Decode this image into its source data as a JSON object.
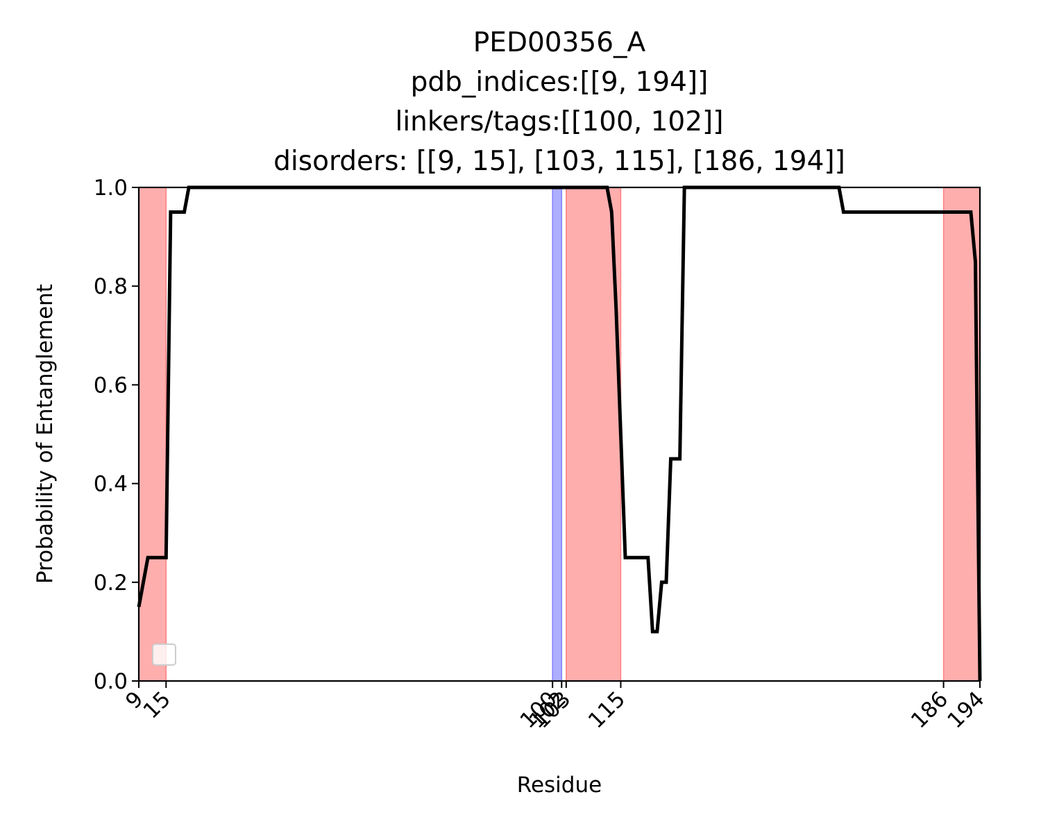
{
  "chart_data": {
    "type": "line",
    "title_lines": [
      "PED00356_A",
      "pdb_indices:[[9, 194]]",
      "linkers/tags:[[100, 102]]",
      "disorders: [[9, 15], [103, 115], [186, 194]]"
    ],
    "xlabel": "Residue",
    "ylabel": "Probability of Entanglement",
    "xlim": [
      9,
      194
    ],
    "ylim": [
      0,
      1.0
    ],
    "x_ticks": [
      9,
      15,
      100,
      102,
      103,
      115,
      186,
      194
    ],
    "x_tick_labels": [
      "9",
      "15",
      "100",
      "102",
      "103",
      "115",
      "186",
      "194"
    ],
    "y_ticks": [
      0,
      0.2,
      0.4,
      0.6,
      0.8,
      1.0
    ],
    "y_tick_labels": [
      "0.0",
      "0.2",
      "0.4",
      "0.6",
      "0.8",
      "1.0"
    ],
    "grid": false,
    "legend": {
      "placement": "lower-left",
      "entries": []
    },
    "shaded_regions": [
      {
        "kind": "disorder",
        "x0": 9,
        "x1": 15,
        "color": "#ff6b6b"
      },
      {
        "kind": "linker",
        "x0": 100,
        "x1": 102,
        "color": "#6b6bff"
      },
      {
        "kind": "disorder",
        "x0": 103,
        "x1": 115,
        "color": "#ff6b6b"
      },
      {
        "kind": "disorder",
        "x0": 186,
        "x1": 194,
        "color": "#ff6b6b"
      }
    ],
    "series": [
      {
        "color": "#000000",
        "points": [
          [
            9,
            0.15
          ],
          [
            10,
            0.2
          ],
          [
            11,
            0.25
          ],
          [
            14,
            0.25
          ],
          [
            15,
            0.25
          ],
          [
            16,
            0.95
          ],
          [
            19,
            0.95
          ],
          [
            20,
            1.0
          ],
          [
            112,
            1.0
          ],
          [
            113,
            0.95
          ],
          [
            114,
            0.75
          ],
          [
            115,
            0.5
          ],
          [
            116,
            0.25
          ],
          [
            121,
            0.25
          ],
          [
            122,
            0.1
          ],
          [
            123,
            0.1
          ],
          [
            124,
            0.2
          ],
          [
            125,
            0.2
          ],
          [
            126,
            0.45
          ],
          [
            128,
            0.45
          ],
          [
            129,
            1.0
          ],
          [
            163,
            1.0
          ],
          [
            164,
            0.95
          ],
          [
            192,
            0.95
          ],
          [
            193,
            0.85
          ],
          [
            194,
            0.0
          ]
        ]
      }
    ]
  }
}
